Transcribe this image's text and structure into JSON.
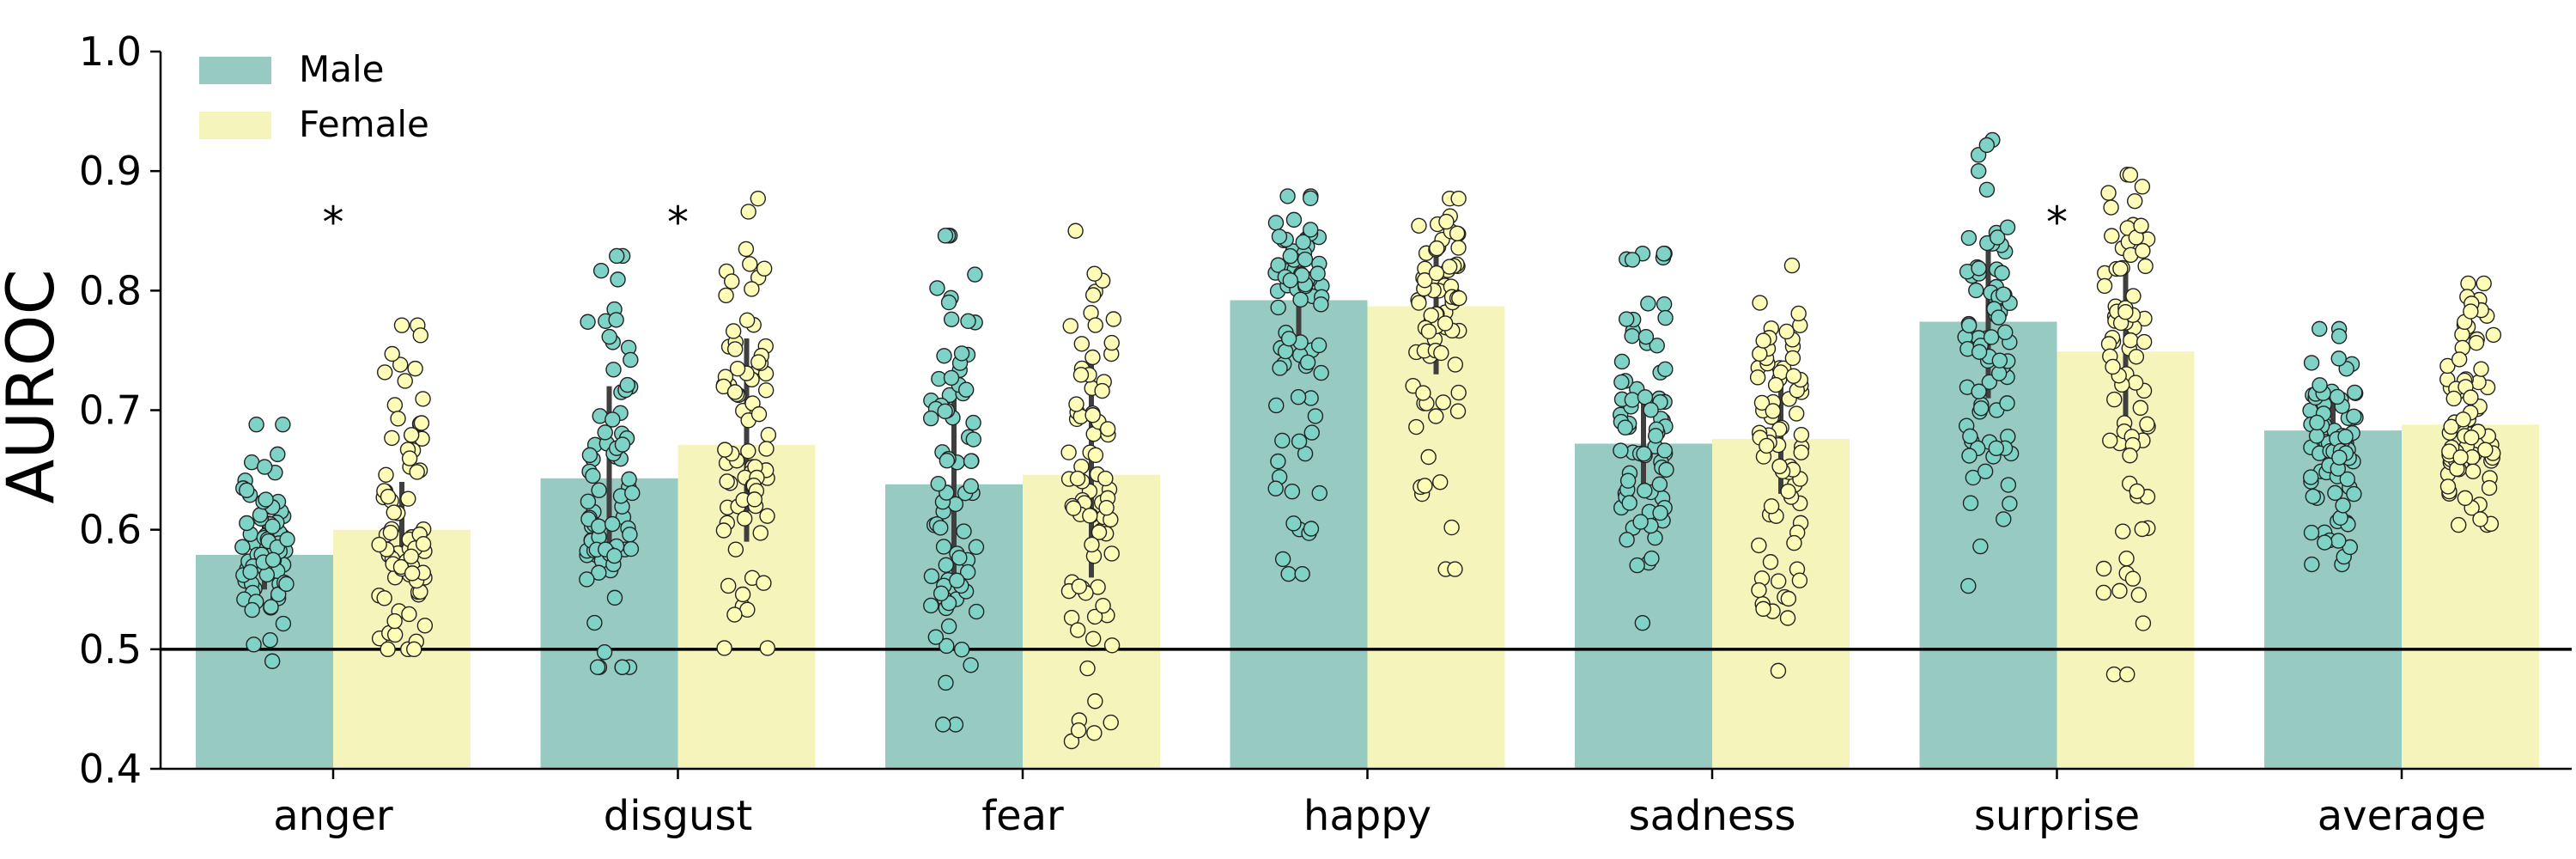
{
  "chart_data": {
    "type": "bar",
    "ylabel": "AUROC",
    "xlabel": "",
    "title": "",
    "ylim": [
      0.4,
      1.0
    ],
    "yticks": [
      "0.4",
      "0.5",
      "0.6",
      "0.7",
      "0.8",
      "0.9",
      "1.0"
    ],
    "reference_line": 0.5,
    "categories": [
      "anger",
      "disgust",
      "fear",
      "happy",
      "sadness",
      "surprise",
      "average"
    ],
    "series": [
      {
        "name": "Male",
        "color": "#97cbc1",
        "point_color": "#7fd3c6",
        "values": [
          0.579,
          0.643,
          0.638,
          0.792,
          0.672,
          0.774,
          0.683
        ],
        "error_low": [
          0.55,
          0.57,
          0.56,
          0.76,
          0.63,
          0.71,
          0.65
        ],
        "error_high": [
          0.61,
          0.72,
          0.72,
          0.83,
          0.71,
          0.84,
          0.72
        ],
        "point_min": [
          0.49,
          0.485,
          0.437,
          0.563,
          0.522,
          0.553,
          0.571
        ],
        "point_max": [
          0.688,
          0.829,
          0.846,
          0.879,
          0.831,
          0.926,
          0.768
        ]
      },
      {
        "name": "Female",
        "color": "#f5f5bb",
        "point_color": "#fdfdb8",
        "values": [
          0.6,
          0.671,
          0.646,
          0.787,
          0.676,
          0.749,
          0.688
        ],
        "error_low": [
          0.56,
          0.59,
          0.56,
          0.73,
          0.63,
          0.67,
          0.65
        ],
        "error_high": [
          0.64,
          0.76,
          0.74,
          0.84,
          0.73,
          0.82,
          0.72
        ],
        "point_min": [
          0.5,
          0.501,
          0.423,
          0.567,
          0.482,
          0.479,
          0.604
        ],
        "point_max": [
          0.771,
          0.877,
          0.85,
          0.877,
          0.821,
          0.897,
          0.806
        ]
      }
    ],
    "significance": [
      {
        "category": "anger",
        "label": "*",
        "value": 0.865
      },
      {
        "category": "disgust",
        "label": "*",
        "value": 0.865
      },
      {
        "category": "surprise",
        "label": "*",
        "value": 0.865
      }
    ],
    "legend_position": "top-left",
    "grid": false
  }
}
